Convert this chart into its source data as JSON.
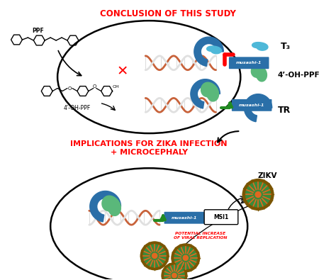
{
  "title1": "CONCLUSION OF THIS STUDY",
  "title2": "IMPLICATIONS FOR ZIKA INFECTION\n+ MICROCEPHALY",
  "title_color": "#FF0000",
  "bg_color": "#FFFFFF",
  "legend_labels": [
    "T₃",
    "4’-OH-PPF",
    "TR"
  ],
  "musashi_label": "musashi-1",
  "musashi_color": "#2a6fa8",
  "zikv_label": "ZIKV",
  "msi1_label": "MSI1",
  "viral_label": "POTENTIAL INCREASE\nOF VIRAL REPLICATION",
  "viral_color": "#FF0000",
  "ppf_label": "PPF",
  "oh_ppf_label": "4’-OH-PPF",
  "t3_color": "#4eb8d8",
  "oh_ppf_color": "#5ab87a",
  "tr_color": "#2a6fa8",
  "dna_orange": "#c8623a",
  "dna_white": "#e0e0e0",
  "green_arrow_color": "#228B22",
  "red_color": "#FF0000"
}
